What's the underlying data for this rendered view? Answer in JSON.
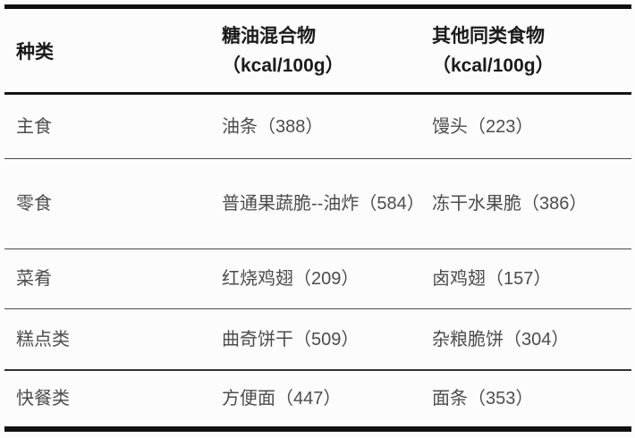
{
  "table": {
    "columns": [
      {
        "label": "种类",
        "unit": ""
      },
      {
        "label": "糖油混合物",
        "unit": "（kcal/100g）"
      },
      {
        "label": "其他同类食物",
        "unit": "（kcal/100g）"
      }
    ],
    "rows": [
      {
        "category": "主食",
        "mixture": "油条（388）",
        "other": "馒头（223）"
      },
      {
        "category": "零食",
        "mixture": "普通果蔬脆--油炸（584）",
        "other": "冻干水果脆（386）"
      },
      {
        "category": "菜肴",
        "mixture": "红烧鸡翅（209）",
        "other": "卤鸡翅（157）"
      },
      {
        "category": "糕点类",
        "mixture": "曲奇饼干（509）",
        "other": "杂粮脆饼（304）"
      },
      {
        "category": "快餐类",
        "mixture": "方便面（447）",
        "other": "面条（353）"
      }
    ]
  },
  "colors": {
    "border_black": "#101010",
    "separator_gray": "#4a4a4a",
    "separator_heavy": "#323232",
    "header_text": "#1b1b1b",
    "body_text": "#4d4d4d",
    "background": "#fcfcfc"
  },
  "chart_data": {
    "type": "table",
    "title": "",
    "columns": [
      "种类",
      "糖油混合物（kcal/100g）",
      "其他同类食物（kcal/100g）"
    ],
    "rows": [
      [
        "主食",
        "油条（388）",
        "馒头（223）"
      ],
      [
        "零食",
        "普通果蔬脆--油炸（584）",
        "冻干水果脆（386）"
      ],
      [
        "菜肴",
        "红烧鸡翅（209）",
        "卤鸡翅（157）"
      ],
      [
        "糕点类",
        "曲奇饼干（509）",
        "杂粮脆饼（304）"
      ],
      [
        "快餐类",
        "方便面（447）",
        "面条（353）"
      ]
    ],
    "values_kcal_per_100g": {
      "油条": 388,
      "馒头": 223,
      "普通果蔬脆--油炸": 584,
      "冻干水果脆": 386,
      "红烧鸡翅": 209,
      "卤鸡翅": 157,
      "曲奇饼干": 509,
      "杂粮脆饼": 304,
      "方便面": 447,
      "面条": 353
    },
    "layout": {
      "style": "three-line table",
      "header_lines": 2,
      "column_alignment": "left"
    }
  }
}
